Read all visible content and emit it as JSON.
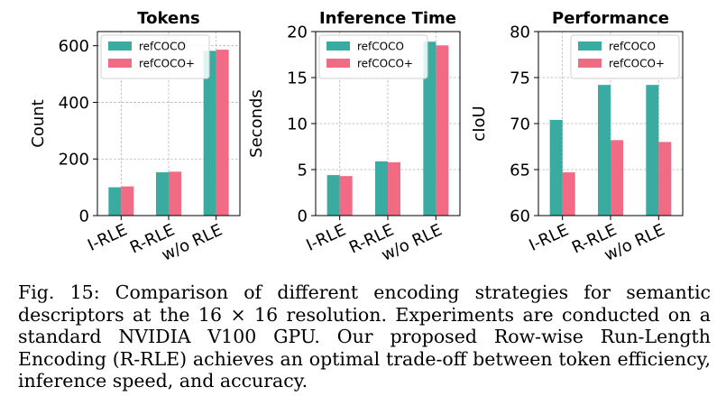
{
  "colors": {
    "refCOCO": "#3aaba0",
    "refCOCO+": "#f26b84"
  },
  "chart_data": [
    {
      "type": "bar",
      "title": "Tokens",
      "ylabel": "Count",
      "xlabel": "",
      "categories": [
        "I-RLE",
        "R-RLE",
        "w/o RLE"
      ],
      "series": [
        {
          "name": "refCOCO",
          "values": [
            100,
            153,
            582
          ]
        },
        {
          "name": "refCOCO+",
          "values": [
            103,
            155,
            586
          ]
        }
      ],
      "ylim": [
        0,
        650
      ],
      "yticks": [
        0,
        200,
        400,
        600
      ],
      "grid": true,
      "legend": "top-left"
    },
    {
      "type": "bar",
      "title": "Inference Time",
      "ylabel": "Seconds",
      "xlabel": "",
      "categories": [
        "I-RLE",
        "R-RLE",
        "w/o RLE"
      ],
      "series": [
        {
          "name": "refCOCO",
          "values": [
            4.4,
            5.9,
            18.9
          ]
        },
        {
          "name": "refCOCO+",
          "values": [
            4.3,
            5.8,
            18.5
          ]
        }
      ],
      "ylim": [
        0,
        20
      ],
      "yticks": [
        0,
        5,
        10,
        15,
        20
      ],
      "grid": true,
      "legend": "top-left"
    },
    {
      "type": "bar",
      "title": "Performance",
      "ylabel": "cIoU",
      "xlabel": "",
      "categories": [
        "I-RLE",
        "R-RLE",
        "w/o RLE"
      ],
      "series": [
        {
          "name": "refCOCO",
          "values": [
            70.4,
            74.2,
            74.2
          ]
        },
        {
          "name": "refCOCO+",
          "values": [
            64.7,
            68.2,
            68.0
          ]
        }
      ],
      "ylim": [
        60,
        80
      ],
      "yticks": [
        60,
        65,
        70,
        75,
        80
      ],
      "grid": true,
      "legend": "top-right"
    }
  ],
  "caption": {
    "label": "Fig. 15:",
    "text": "Comparison of different encoding strategies for semantic descriptors at the 16 × 16 resolution. Experiments are conducted on a standard NVIDIA V100 GPU. Our proposed Row-wise Run-Length Encoding (R-RLE) achieves an optimal trade-off between token efficiency, inference speed, and accuracy."
  }
}
